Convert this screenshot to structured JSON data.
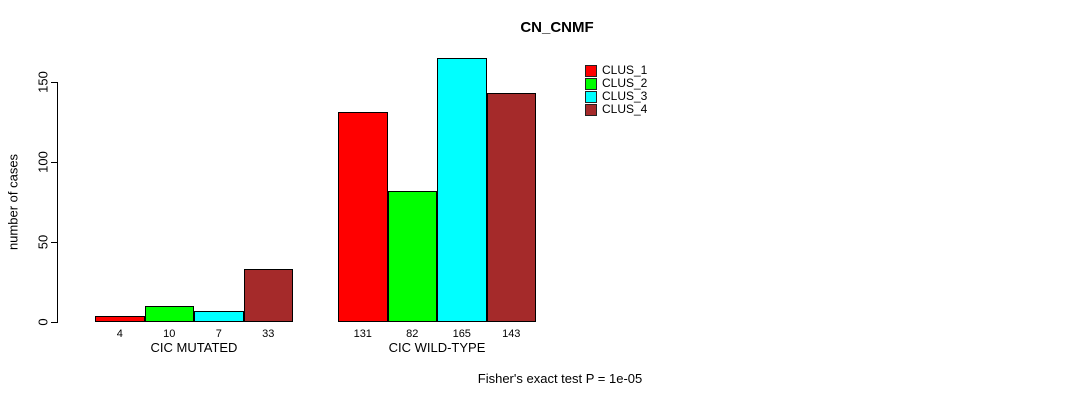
{
  "chart_data": {
    "type": "bar",
    "title": "CN_CNMF",
    "xlabel": "",
    "ylabel": "number of cases",
    "categories": [
      "CIC MUTATED",
      "CIC WILD-TYPE"
    ],
    "series": [
      {
        "name": "CLUS_1",
        "color": "#FF0000",
        "values": [
          4,
          131
        ]
      },
      {
        "name": "CLUS_2",
        "color": "#00FF00",
        "values": [
          10,
          82
        ]
      },
      {
        "name": "CLUS_3",
        "color": "#00FFFF",
        "values": [
          7,
          165
        ]
      },
      {
        "name": "CLUS_4",
        "color": "#A52A2A",
        "values": [
          33,
          143
        ]
      }
    ],
    "yticks": [
      0,
      50,
      100,
      150
    ],
    "ylim": [
      0,
      165
    ],
    "grid": false,
    "bar_value_labels_shown": true,
    "legend_position": "top-right",
    "annotation": "Fisher's exact test P = 1e-05"
  }
}
